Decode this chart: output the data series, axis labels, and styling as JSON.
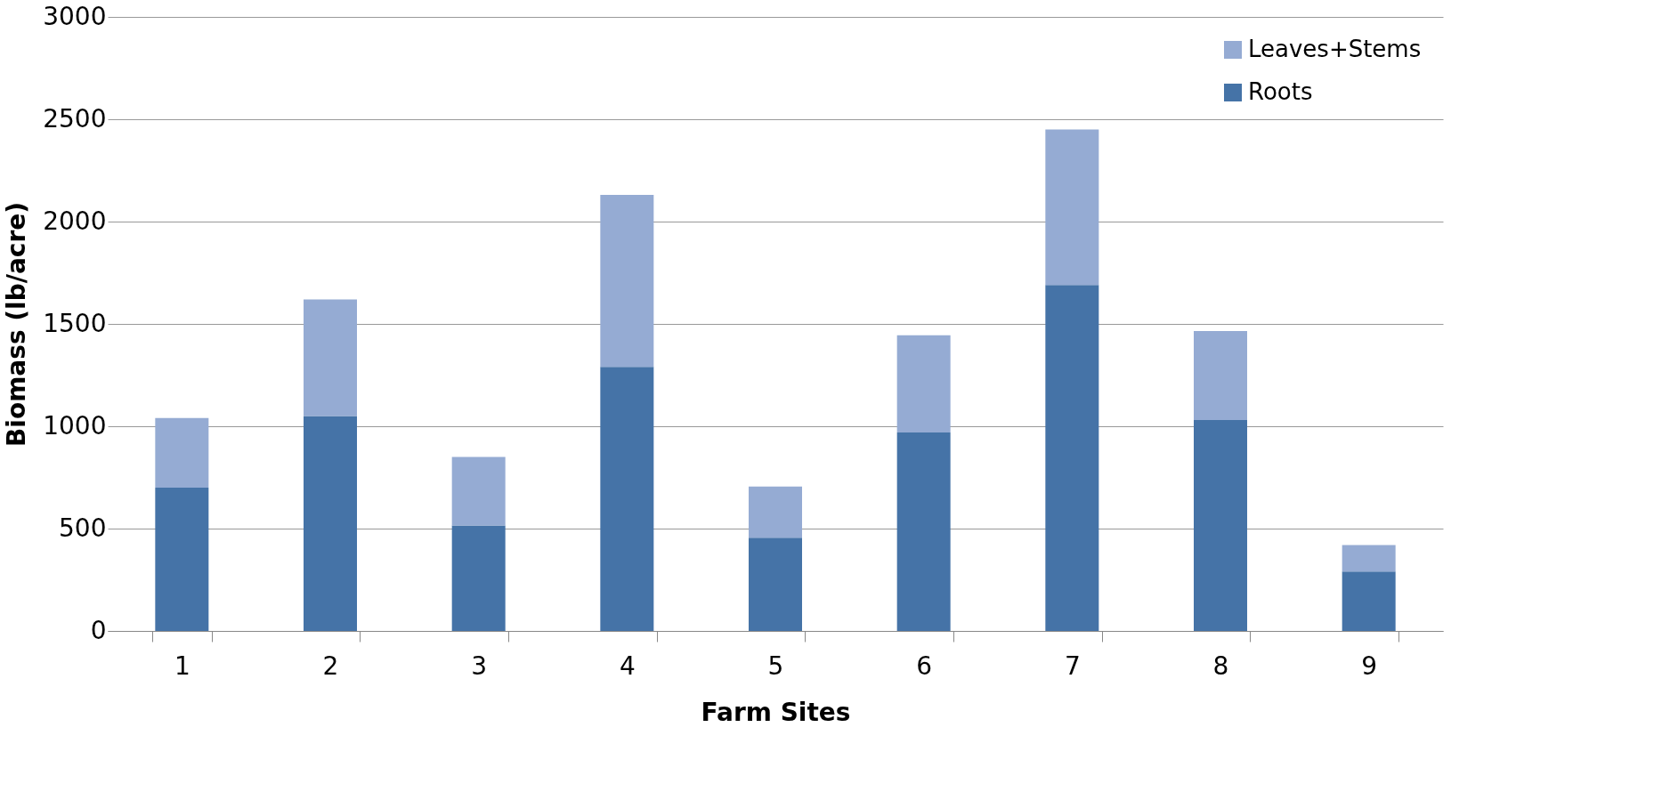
{
  "chart_data": {
    "type": "bar",
    "stacked": true,
    "xlabel": "Farm Sites",
    "ylabel": "Biomass (lb/acre)",
    "categories": [
      "1",
      "2",
      "3",
      "4",
      "5",
      "6",
      "7",
      "8",
      "9"
    ],
    "series": [
      {
        "name": "Roots",
        "color": "#4573a7",
        "values": [
          700,
          1050,
          515,
          1290,
          455,
          970,
          1690,
          1030,
          290
        ]
      },
      {
        "name": "Leaves+Stems",
        "color": "#95abd3",
        "values": [
          340,
          570,
          335,
          840,
          250,
          475,
          760,
          435,
          130
        ]
      }
    ],
    "ylim": [
      0,
      3000
    ],
    "yticks": [
      0,
      500,
      1000,
      1500,
      2000,
      2500,
      3000
    ],
    "grid": "y",
    "legend": "top right"
  }
}
